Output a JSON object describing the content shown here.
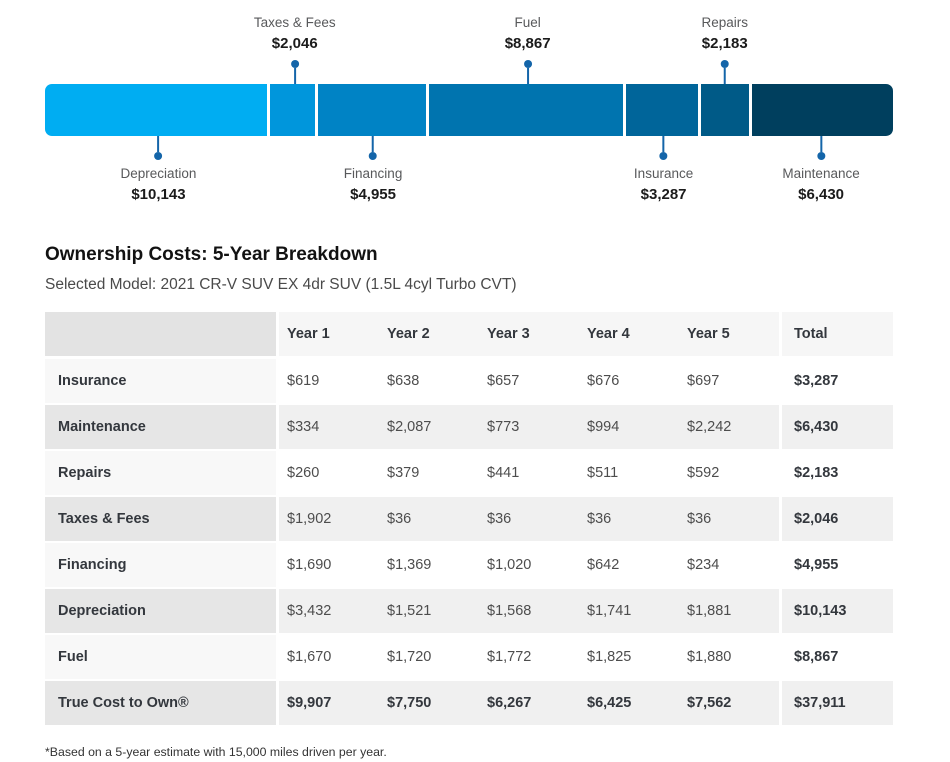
{
  "section": {
    "title": "Ownership Costs: 5-Year Breakdown",
    "subtitle": "Selected Model: 2021 CR-V SUV EX 4dr SUV (1.5L 4cyl Turbo CVT)"
  },
  "footnote": "*Based on a 5-year estimate with 15,000 miles driven per year.",
  "accent_color": "#1465a9",
  "chart_data": [
    {
      "type": "bar",
      "subtype": "horizontal_stacked_single_bar",
      "title": "",
      "categories": [
        "Depreciation",
        "Taxes & Fees",
        "Financing",
        "Fuel",
        "Insurance",
        "Repairs",
        "Maintenance"
      ],
      "values": [
        10143,
        2046,
        4955,
        8867,
        3287,
        2183,
        6430
      ],
      "value_labels": [
        "$10,143",
        "$2,046",
        "$4,955",
        "$8,867",
        "$3,287",
        "$2,183",
        "$6,430"
      ],
      "colors": [
        "#00adf2",
        "#0096dc",
        "#0083c5",
        "#0074af",
        "#00659a",
        "#005a87",
        "#003f5e"
      ],
      "callout_side": [
        "bottom",
        "top",
        "bottom",
        "top",
        "bottom",
        "top",
        "bottom"
      ],
      "total": 37911,
      "legend": "none",
      "axes": "none"
    },
    {
      "type": "table",
      "columns": [
        "",
        "Year 1",
        "Year 2",
        "Year 3",
        "Year 4",
        "Year 5",
        "Total"
      ],
      "rows": [
        {
          "label": "Insurance",
          "values": [
            "$619",
            "$638",
            "$657",
            "$676",
            "$697"
          ],
          "total": "$3,287",
          "bold": false
        },
        {
          "label": "Maintenance",
          "values": [
            "$334",
            "$2,087",
            "$773",
            "$994",
            "$2,242"
          ],
          "total": "$6,430",
          "bold": false
        },
        {
          "label": "Repairs",
          "values": [
            "$260",
            "$379",
            "$441",
            "$511",
            "$592"
          ],
          "total": "$2,183",
          "bold": false
        },
        {
          "label": "Taxes & Fees",
          "values": [
            "$1,902",
            "$36",
            "$36",
            "$36",
            "$36"
          ],
          "total": "$2,046",
          "bold": false
        },
        {
          "label": "Financing",
          "values": [
            "$1,690",
            "$1,369",
            "$1,020",
            "$642",
            "$234"
          ],
          "total": "$4,955",
          "bold": false
        },
        {
          "label": "Depreciation",
          "values": [
            "$3,432",
            "$1,521",
            "$1,568",
            "$1,741",
            "$1,881"
          ],
          "total": "$10,143",
          "bold": false
        },
        {
          "label": "Fuel",
          "values": [
            "$1,670",
            "$1,720",
            "$1,772",
            "$1,825",
            "$1,880"
          ],
          "total": "$8,867",
          "bold": false
        },
        {
          "label": "True Cost to Own®",
          "values": [
            "$9,907",
            "$7,750",
            "$6,267",
            "$6,425",
            "$7,562"
          ],
          "total": "$37,911",
          "bold": true
        }
      ]
    }
  ]
}
